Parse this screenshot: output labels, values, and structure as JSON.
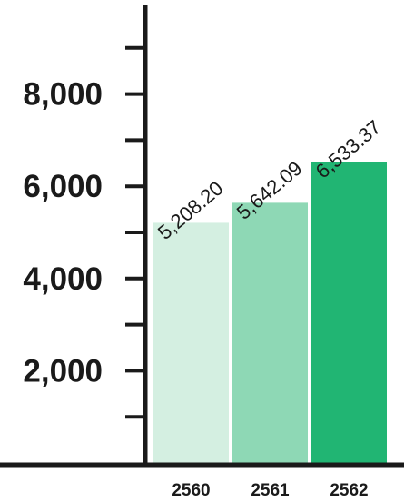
{
  "chart_data": {
    "type": "bar",
    "categories": [
      "2560",
      "2561",
      "2562"
    ],
    "values": [
      5208.2,
      5642.09,
      6533.37
    ],
    "value_labels": [
      "5,208.20",
      "5,642.09",
      "6,533.37"
    ],
    "ylim": [
      0,
      9000
    ],
    "major_ticks": [
      2000,
      4000,
      6000,
      8000
    ],
    "major_tick_labels": [
      "2,000",
      "4,000",
      "6,000",
      "8,000"
    ],
    "minor_ticks": [
      1000,
      3000,
      5000,
      7000,
      9000
    ],
    "colors": [
      "#d4efe1",
      "#8ed8b5",
      "#21b573"
    ],
    "grid": false,
    "legend": "none",
    "title": "",
    "xlabel": "",
    "ylabel": ""
  }
}
